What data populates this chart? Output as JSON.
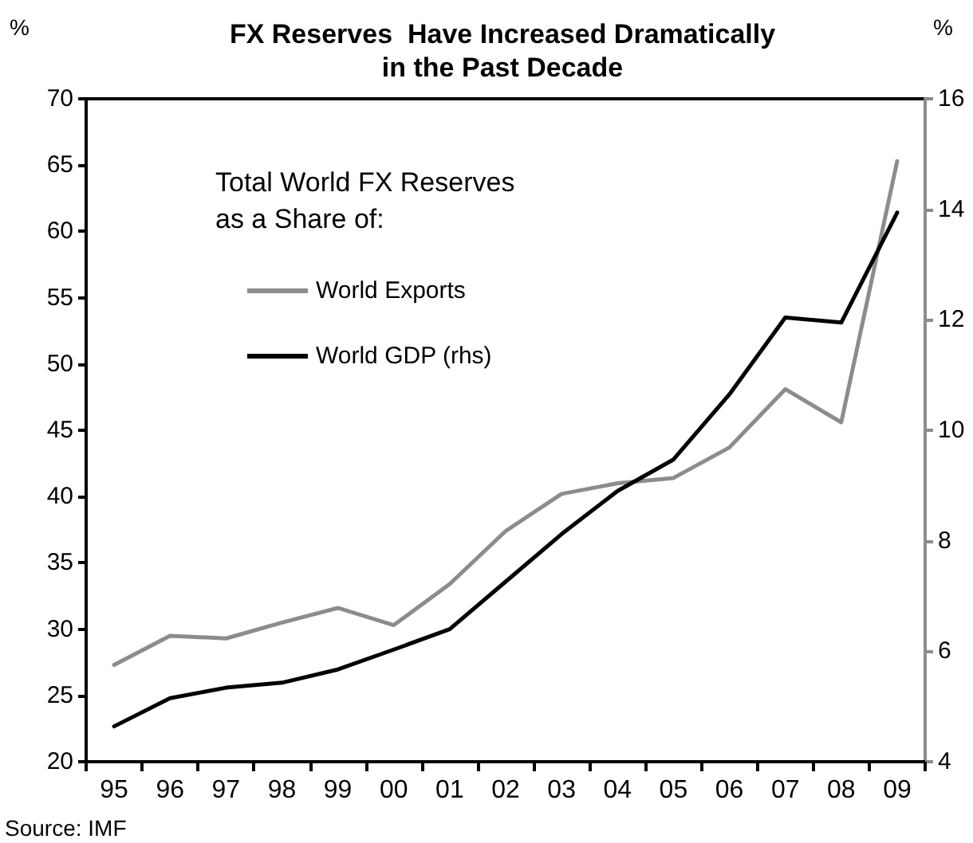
{
  "chart_data": {
    "type": "line",
    "title": "FX Reserves  Have Increased Dramatically\nin the Past Decade",
    "ylabel": "%",
    "y2label": "%",
    "categories": [
      "95",
      "96",
      "97",
      "98",
      "99",
      "00",
      "01",
      "02",
      "03",
      "04",
      "05",
      "06",
      "07",
      "08",
      "09"
    ],
    "series": [
      {
        "name": "World Exports",
        "color": "#8c8c8c",
        "values": [
          27.3,
          29.5,
          29.3,
          30.5,
          31.6,
          30.3,
          33.4,
          37.4,
          40.2,
          41.0,
          41.4,
          43.7,
          48.1,
          45.6,
          65.3
        ]
      },
      {
        "name": "World GDP (rhs)",
        "color": "#000000",
        "axis": "y2",
        "values": [
          4.64,
          5.15,
          5.34,
          5.43,
          5.67,
          6.03,
          6.4,
          7.26,
          8.12,
          8.9,
          9.47,
          10.65,
          12.04,
          11.95,
          13.94
        ]
      }
    ],
    "ylim": [
      20,
      70
    ],
    "yticks": [
      20,
      25,
      30,
      35,
      40,
      45,
      50,
      55,
      60,
      65,
      70
    ],
    "y2lim": [
      4,
      16
    ],
    "y2ticks": [
      4,
      6,
      8,
      10,
      12,
      14,
      16
    ],
    "legend": "top left",
    "grid": false,
    "marker": "none",
    "line_style": "solid",
    "annotations": [
      "Total World FX Reserves\nas a Share of:",
      "Source: IMF"
    ]
  }
}
